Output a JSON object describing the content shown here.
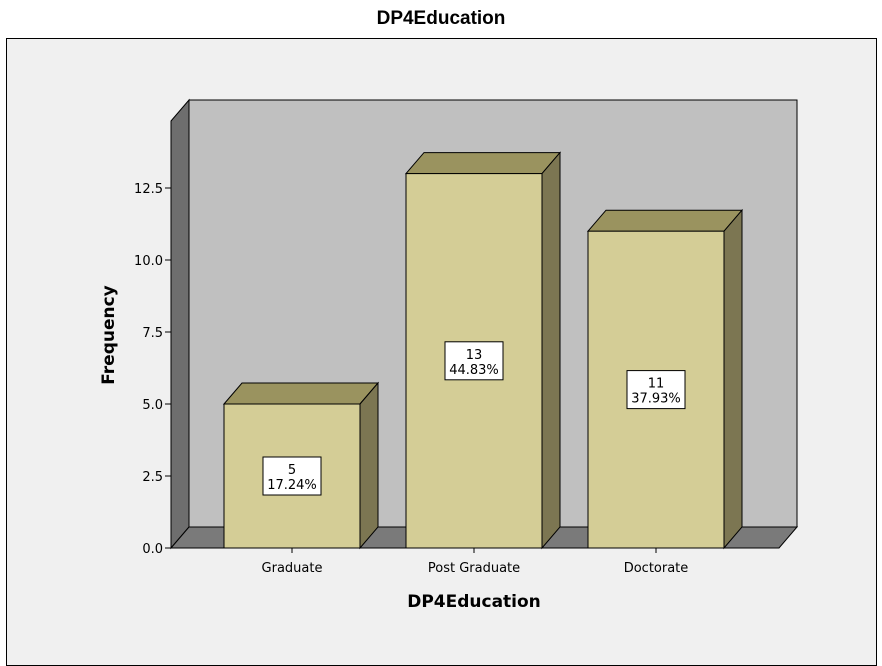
{
  "chart_data": {
    "type": "bar",
    "title": "DP4Education",
    "xlabel": "DP4Education",
    "ylabel": "Frequency",
    "categories": [
      "Graduate",
      "Post Graduate",
      "Doctorate"
    ],
    "values": [
      5,
      13,
      11
    ],
    "percent_labels": [
      "17.24%",
      "44.83%",
      "37.93%"
    ],
    "count_labels": [
      "5",
      "13",
      "11"
    ],
    "y_ticks": [
      "0.0",
      "2.5",
      "5.0",
      "7.5",
      "10.0",
      "12.5"
    ],
    "ylim": [
      0,
      14.5
    ],
    "grid": false,
    "style": "3d",
    "colors": {
      "bar_front": "#d4cd96",
      "bar_side": "#7c7652",
      "bar_top": "#9a935f",
      "back_wall": "#c0c0c0",
      "floor": "#7a7a7a",
      "left_wall": "#6e6e6e",
      "panel": "#f0f0f0"
    }
  }
}
